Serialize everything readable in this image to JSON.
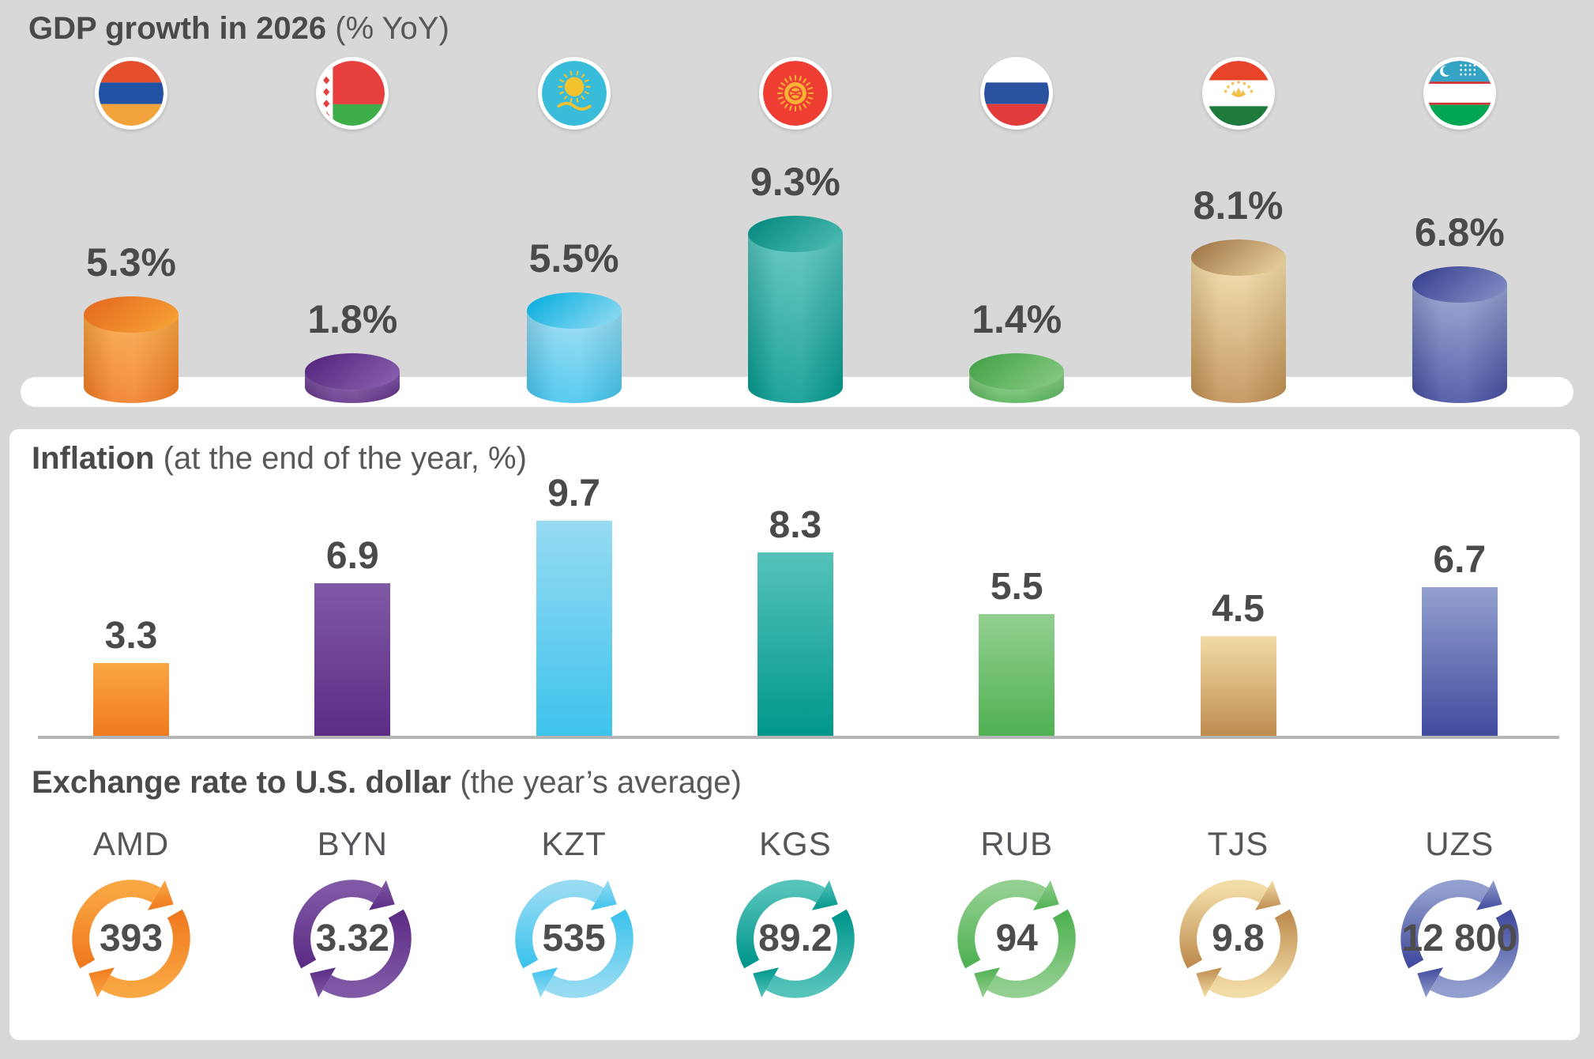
{
  "titles": {
    "gdp_bold": "GDP growth in 2026",
    "gdp_note": " (% YoY)",
    "inflation_bold": "Inflation",
    "inflation_note": " (at the end of the year, %)",
    "fx_bold": "Exchange rate to U.S. dollar",
    "fx_note": " (the year’s average)"
  },
  "colors": {
    "background": "#d8d8d8",
    "panel": "#ffffff",
    "text_dark": "#4a4a4c",
    "text_note": "#57585b",
    "baseline": "#b5b5b5"
  },
  "countries": [
    {
      "key": "armenia",
      "name": "Armenia",
      "flag_icon": "armenia-flag-icon",
      "currency": "AMD",
      "fx_rate": "393",
      "gdp_value": 5.3,
      "gdp_label": "5.3%",
      "inflation_value": 3.3,
      "inflation_label": "3.3",
      "palette": {
        "light": "#F9A743",
        "dark": "#F0791F",
        "ellipse_from": "#E2661F",
        "ellipse_to": "#F9A636"
      }
    },
    {
      "key": "belarus",
      "name": "Belarus",
      "flag_icon": "belarus-flag-icon",
      "currency": "BYN",
      "fx_rate": "3.32",
      "gdp_value": 1.8,
      "gdp_label": "1.8%",
      "inflation_value": 6.9,
      "inflation_label": "6.9",
      "palette": {
        "light": "#8059A6",
        "dark": "#5C2C84",
        "ellipse_from": "#50217A",
        "ellipse_to": "#8E64B2"
      }
    },
    {
      "key": "kazakhstan",
      "name": "Kazakhstan",
      "flag_icon": "kazakhstan-flag-icon",
      "currency": "KZT",
      "fx_rate": "535",
      "gdp_value": 5.5,
      "gdp_label": "5.5%",
      "inflation_value": 9.7,
      "inflation_label": "9.7",
      "palette": {
        "light": "#96DBF2",
        "dark": "#3EC3ED",
        "ellipse_from": "#00ACDE",
        "ellipse_to": "#9ADDF3"
      }
    },
    {
      "key": "kyrgyzstan",
      "name": "Kyrgyzstan",
      "flag_icon": "kyrgyzstan-flag-icon",
      "currency": "KGS",
      "fx_rate": "89.2",
      "gdp_value": 9.3,
      "gdp_label": "9.3%",
      "inflation_value": 8.3,
      "inflation_label": "8.3",
      "palette": {
        "light": "#55C3BA",
        "dark": "#00968C",
        "ellipse_from": "#00857B",
        "ellipse_to": "#52C0B6"
      }
    },
    {
      "key": "russia",
      "name": "Russia",
      "flag_icon": "russia-flag-icon",
      "currency": "RUB",
      "fx_rate": "94",
      "gdp_value": 1.4,
      "gdp_label": "1.4%",
      "inflation_value": 5.5,
      "inflation_label": "5.5",
      "palette": {
        "light": "#93CF90",
        "dark": "#4FB152",
        "ellipse_from": "#3F9F43",
        "ellipse_to": "#8CCD89"
      }
    },
    {
      "key": "tajikistan",
      "name": "Tajikistan",
      "flag_icon": "tajikistan-flag-icon",
      "currency": "TJS",
      "fx_rate": "9.8",
      "gdp_value": 8.1,
      "gdp_label": "8.1%",
      "inflation_value": 4.5,
      "inflation_label": "4.5",
      "palette": {
        "light": "#F2DCA6",
        "dark": "#BE8C4F",
        "ellipse_from": "#9A6F40",
        "ellipse_to": "#EFD7A3"
      }
    },
    {
      "key": "uzbekistan",
      "name": "Uzbekistan",
      "flag_icon": "uzbekistan-flag-icon",
      "currency": "UZS",
      "fx_rate": "12 800",
      "gdp_value": 6.8,
      "gdp_label": "6.8%",
      "inflation_value": 6.7,
      "inflation_label": "6.7",
      "palette": {
        "light": "#93A0CF",
        "dark": "#414A9D",
        "ellipse_from": "#333B8D",
        "ellipse_to": "#8893C8"
      }
    }
  ],
  "chart_data": [
    {
      "type": "bar",
      "variant": "3d-cylinder",
      "title": "GDP growth in 2026 (% YoY)",
      "categories": [
        "Armenia",
        "Belarus",
        "Kazakhstan",
        "Kyrgyzstan",
        "Russia",
        "Tajikistan",
        "Uzbekistan"
      ],
      "values": [
        5.3,
        1.8,
        5.5,
        9.3,
        1.4,
        8.1,
        6.8
      ],
      "value_labels": [
        "5.3%",
        "1.8%",
        "5.5%",
        "9.3%",
        "1.4%",
        "8.1%",
        "6.8%"
      ],
      "unit": "% YoY",
      "legend": false,
      "gridlines": false
    },
    {
      "type": "bar",
      "title": "Inflation (at the end of the year, %)",
      "categories": [
        "Armenia",
        "Belarus",
        "Kazakhstan",
        "Kyrgyzstan",
        "Russia",
        "Tajikistan",
        "Uzbekistan"
      ],
      "values": [
        3.3,
        6.9,
        9.7,
        8.3,
        5.5,
        4.5,
        6.7
      ],
      "unit": "%",
      "legend": false,
      "gridlines": false,
      "baseline": true
    },
    {
      "type": "table",
      "title": "Exchange rate to U.S. dollar (the year’s average)",
      "categories": [
        "AMD",
        "BYN",
        "KZT",
        "KGS",
        "RUB",
        "TJS",
        "UZS"
      ],
      "values": [
        "393",
        "3.32",
        "535",
        "89.2",
        "94",
        "9.8",
        "12 800"
      ]
    }
  ]
}
